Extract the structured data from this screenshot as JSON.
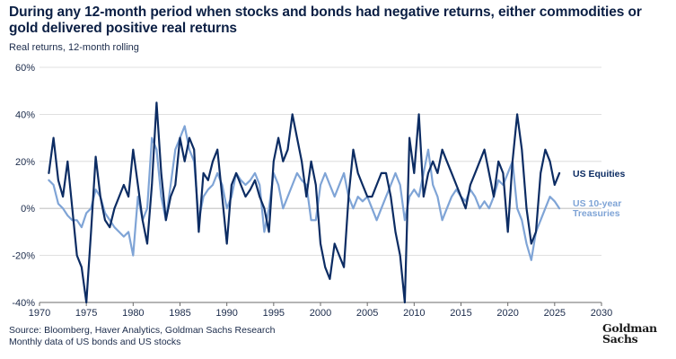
{
  "title": "During any 12-month period when stocks and bonds had negative returns, either commodities or gold delivered positive real returns",
  "subtitle": "Real returns, 12-month rolling",
  "footer": {
    "source": "Source: Bloomberg, Haver Analytics, Goldman Sachs Research",
    "note": "Monthly data of US bonds and US stocks"
  },
  "logo": {
    "line1": "Goldman",
    "line2": "Sachs"
  },
  "colors": {
    "equities": "#0c2c63",
    "treasuries": "#7fa4d6",
    "axis": "#6b6b6b",
    "grid": "#d6d6d6",
    "text": "#1a2a4a"
  },
  "chart_data": {
    "type": "line",
    "title": "Real returns, 12-month rolling",
    "xlabel": "",
    "ylabel": "",
    "xlim": [
      1970,
      2030
    ],
    "ylim": [
      -40,
      60
    ],
    "x_ticks": [
      1970,
      1975,
      1980,
      1985,
      1990,
      1995,
      2000,
      2005,
      2010,
      2015,
      2020,
      2025,
      2030
    ],
    "x_tick_labels": [
      "1970",
      "1975",
      "1980",
      "1985",
      "1990",
      "1995",
      "2000",
      "2005",
      "2010",
      "2015",
      "2020",
      "2025",
      "2030"
    ],
    "y_ticks": [
      -40,
      -20,
      0,
      20,
      40,
      60
    ],
    "y_tick_labels": [
      "-40%",
      "-20%",
      "0%",
      "20%",
      "40%",
      "60%"
    ],
    "grid": "horizontal",
    "series": [
      {
        "name": "US Equities",
        "label_lines": [
          "US Equities"
        ],
        "color": "#0c2c63",
        "x": [
          1971.0,
          1971.5,
          1972.0,
          1972.5,
          1973.0,
          1973.5,
          1974.0,
          1974.5,
          1975.0,
          1975.5,
          1976.0,
          1976.5,
          1977.0,
          1977.5,
          1978.0,
          1978.5,
          1979.0,
          1979.5,
          1980.0,
          1980.5,
          1981.0,
          1981.5,
          1982.0,
          1982.5,
          1983.0,
          1983.5,
          1984.0,
          1984.5,
          1985.0,
          1985.5,
          1986.0,
          1986.5,
          1987.0,
          1987.5,
          1988.0,
          1988.5,
          1989.0,
          1989.5,
          1990.0,
          1990.5,
          1991.0,
          1991.5,
          1992.0,
          1992.5,
          1993.0,
          1993.5,
          1994.0,
          1994.5,
          1995.0,
          1995.5,
          1996.0,
          1996.5,
          1997.0,
          1997.5,
          1998.0,
          1998.5,
          1999.0,
          1999.5,
          2000.0,
          2000.5,
          2001.0,
          2001.5,
          2002.0,
          2002.5,
          2003.0,
          2003.5,
          2004.0,
          2004.5,
          2005.0,
          2005.5,
          2006.0,
          2006.5,
          2007.0,
          2007.5,
          2008.0,
          2008.5,
          2009.0,
          2009.5,
          2010.0,
          2010.5,
          2011.0,
          2011.5,
          2012.0,
          2012.5,
          2013.0,
          2013.5,
          2014.0,
          2014.5,
          2015.0,
          2015.5,
          2016.0,
          2016.5,
          2017.0,
          2017.5,
          2018.0,
          2018.5,
          2019.0,
          2019.5,
          2020.0,
          2020.5,
          2021.0,
          2021.5,
          2022.0,
          2022.5,
          2023.0,
          2023.5,
          2024.0,
          2024.5,
          2025.0,
          2025.5
        ],
        "values": [
          15,
          30,
          12,
          5,
          20,
          0,
          -20,
          -25,
          -40,
          -10,
          22,
          5,
          -5,
          -8,
          0,
          5,
          10,
          5,
          25,
          10,
          -5,
          -15,
          10,
          45,
          15,
          -5,
          5,
          10,
          30,
          20,
          30,
          25,
          -10,
          15,
          12,
          20,
          25,
          5,
          -15,
          10,
          15,
          10,
          5,
          8,
          12,
          5,
          0,
          -10,
          20,
          30,
          20,
          25,
          40,
          30,
          20,
          5,
          20,
          10,
          -15,
          -25,
          -30,
          -15,
          -20,
          -25,
          5,
          25,
          15,
          10,
          5,
          5,
          10,
          15,
          15,
          5,
          -10,
          -20,
          -40,
          30,
          15,
          40,
          5,
          15,
          20,
          15,
          25,
          20,
          15,
          10,
          5,
          0,
          10,
          15,
          20,
          25,
          15,
          5,
          20,
          15,
          -10,
          20,
          40,
          25,
          0,
          -15,
          -10,
          15,
          25,
          20,
          10,
          15
        ]
      },
      {
        "name": "US 10-year Treasuries",
        "label_lines": [
          "US 10-year",
          "Treasuries"
        ],
        "color": "#7fa4d6",
        "x": [
          1971.0,
          1971.5,
          1972.0,
          1972.5,
          1973.0,
          1973.5,
          1974.0,
          1974.5,
          1975.0,
          1975.5,
          1976.0,
          1976.5,
          1977.0,
          1977.5,
          1978.0,
          1978.5,
          1979.0,
          1979.5,
          1980.0,
          1980.5,
          1981.0,
          1981.5,
          1982.0,
          1982.5,
          1983.0,
          1983.5,
          1984.0,
          1984.5,
          1985.0,
          1985.5,
          1986.0,
          1986.5,
          1987.0,
          1987.5,
          1988.0,
          1988.5,
          1989.0,
          1989.5,
          1990.0,
          1990.5,
          1991.0,
          1991.5,
          1992.0,
          1992.5,
          1993.0,
          1993.5,
          1994.0,
          1994.5,
          1995.0,
          1995.5,
          1996.0,
          1996.5,
          1997.0,
          1997.5,
          1998.0,
          1998.5,
          1999.0,
          1999.5,
          2000.0,
          2000.5,
          2001.0,
          2001.5,
          2002.0,
          2002.5,
          2003.0,
          2003.5,
          2004.0,
          2004.5,
          2005.0,
          2005.5,
          2006.0,
          2006.5,
          2007.0,
          2007.5,
          2008.0,
          2008.5,
          2009.0,
          2009.5,
          2010.0,
          2010.5,
          2011.0,
          2011.5,
          2012.0,
          2012.5,
          2013.0,
          2013.5,
          2014.0,
          2014.5,
          2015.0,
          2015.5,
          2016.0,
          2016.5,
          2017.0,
          2017.5,
          2018.0,
          2018.5,
          2019.0,
          2019.5,
          2020.0,
          2020.5,
          2021.0,
          2021.5,
          2022.0,
          2022.5,
          2023.0,
          2023.5,
          2024.0,
          2024.5,
          2025.0,
          2025.5
        ],
        "values": [
          12,
          10,
          2,
          0,
          -3,
          -5,
          -5,
          -8,
          -2,
          0,
          8,
          5,
          -2,
          -5,
          -8,
          -10,
          -12,
          -10,
          -20,
          5,
          -5,
          0,
          30,
          25,
          5,
          -5,
          10,
          25,
          30,
          35,
          25,
          20,
          -5,
          5,
          8,
          10,
          15,
          10,
          0,
          5,
          15,
          12,
          10,
          12,
          15,
          10,
          -10,
          0,
          15,
          10,
          0,
          5,
          10,
          15,
          12,
          10,
          -5,
          -5,
          10,
          15,
          10,
          5,
          10,
          15,
          5,
          0,
          5,
          3,
          5,
          0,
          -5,
          0,
          5,
          10,
          15,
          10,
          -5,
          5,
          8,
          5,
          15,
          25,
          10,
          5,
          -5,
          0,
          5,
          8,
          5,
          3,
          8,
          5,
          0,
          3,
          0,
          5,
          12,
          10,
          15,
          20,
          0,
          -5,
          -15,
          -22,
          -10,
          -5,
          0,
          5,
          3,
          0
        ]
      }
    ]
  }
}
